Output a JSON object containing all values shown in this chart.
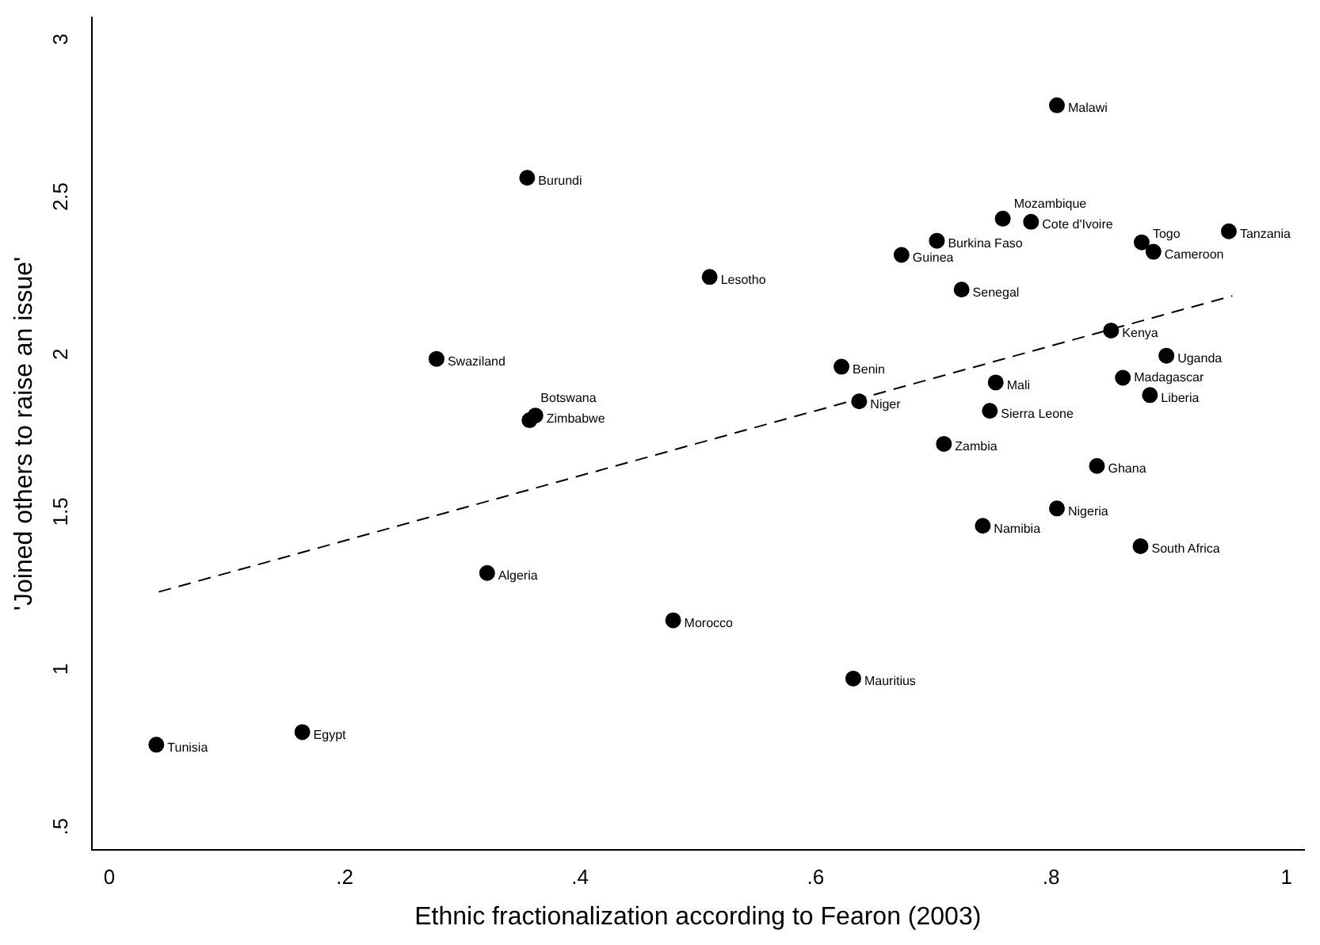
{
  "chart_data": {
    "type": "scatter",
    "xlabel": "Ethnic fractionalization according to Fearon (2003)",
    "ylabel": "'Joined others to raise an issue'",
    "xlim": [
      -0.015,
      1.015
    ],
    "ylim": [
      0.425,
      3.07
    ],
    "xticks": [
      0,
      {
        "value": 0.2,
        "label": ".2"
      },
      {
        "value": 0.4,
        "label": ".4"
      },
      {
        "value": 0.6,
        "label": ".6"
      },
      {
        "value": 0.8,
        "label": ".8"
      },
      1
    ],
    "yticks": [
      {
        "value": 0.5,
        "label": ".5"
      },
      1,
      1.5,
      2,
      2.5,
      3
    ],
    "grid": false,
    "legend": false,
    "marker": "circle",
    "series": [
      {
        "color": "#000000",
        "x": [
          0.805,
          0.355,
          0.759,
          0.783,
          0.703,
          0.673,
          0.877,
          0.887,
          0.951,
          0.51,
          0.724,
          0.851,
          0.898,
          0.622,
          0.278,
          0.753,
          0.861,
          0.884,
          0.362,
          0.357,
          0.637,
          0.748,
          0.709,
          0.839,
          0.805,
          0.742,
          0.876,
          0.321,
          0.479,
          0.632,
          0.164,
          0.04
        ],
        "values": [
          2.79,
          2.56,
          2.43,
          2.42,
          2.36,
          2.315,
          2.355,
          2.325,
          2.39,
          2.245,
          2.205,
          2.075,
          1.995,
          1.96,
          1.985,
          1.91,
          1.925,
          1.87,
          1.805,
          1.79,
          1.85,
          1.82,
          1.715,
          1.645,
          1.51,
          1.455,
          1.39,
          1.305,
          1.155,
          0.97,
          0.8,
          0.76
        ]
      },
      {
        "type": "line",
        "color": "#000000",
        "marker": "none",
        "line_style": "dashed",
        "x": [
          0.042,
          0.954
        ],
        "values": [
          1.245,
          2.185
        ]
      }
    ],
    "annotations": [
      {
        "text": "Malawi",
        "x": 0.805,
        "y": 2.79
      },
      {
        "text": "Burundi",
        "x": 0.355,
        "y": 2.56
      },
      {
        "text": "Mozambique",
        "x": 0.759,
        "y": 2.43
      },
      {
        "text": "Cote d'Ivoire",
        "x": 0.783,
        "y": 2.42
      },
      {
        "text": "Burkina Faso",
        "x": 0.703,
        "y": 2.36
      },
      {
        "text": "Guinea",
        "x": 0.673,
        "y": 2.315
      },
      {
        "text": "Togo",
        "x": 0.877,
        "y": 2.355
      },
      {
        "text": "Cameroon",
        "x": 0.887,
        "y": 2.325
      },
      {
        "text": "Tanzania",
        "x": 0.951,
        "y": 2.39
      },
      {
        "text": "Lesotho",
        "x": 0.51,
        "y": 2.245
      },
      {
        "text": "Senegal",
        "x": 0.724,
        "y": 2.205
      },
      {
        "text": "Kenya",
        "x": 0.851,
        "y": 2.075
      },
      {
        "text": "Uganda",
        "x": 0.898,
        "y": 1.995
      },
      {
        "text": "Benin",
        "x": 0.622,
        "y": 1.96
      },
      {
        "text": "Swaziland",
        "x": 0.278,
        "y": 1.985
      },
      {
        "text": "Mali",
        "x": 0.753,
        "y": 1.91
      },
      {
        "text": "Madagascar",
        "x": 0.861,
        "y": 1.925
      },
      {
        "text": "Liberia",
        "x": 0.884,
        "y": 1.87
      },
      {
        "text": "Zimbabwe",
        "x": 0.362,
        "y": 1.805
      },
      {
        "text": "Botswana",
        "x": 0.357,
        "y": 1.79
      },
      {
        "text": "Niger",
        "x": 0.637,
        "y": 1.85
      },
      {
        "text": "Sierra Leone",
        "x": 0.748,
        "y": 1.82
      },
      {
        "text": "Zambia",
        "x": 0.709,
        "y": 1.715
      },
      {
        "text": "Ghana",
        "x": 0.839,
        "y": 1.645
      },
      {
        "text": "Nigeria",
        "x": 0.805,
        "y": 1.51
      },
      {
        "text": "Namibia",
        "x": 0.742,
        "y": 1.455
      },
      {
        "text": "South Africa",
        "x": 0.876,
        "y": 1.39
      },
      {
        "text": "Algeria",
        "x": 0.321,
        "y": 1.305
      },
      {
        "text": "Morocco",
        "x": 0.479,
        "y": 1.155
      },
      {
        "text": "Mauritius",
        "x": 0.632,
        "y": 0.97
      },
      {
        "text": "Egypt",
        "x": 0.164,
        "y": 0.8
      },
      {
        "text": "Tunisia",
        "x": 0.04,
        "y": 0.76
      }
    ]
  }
}
